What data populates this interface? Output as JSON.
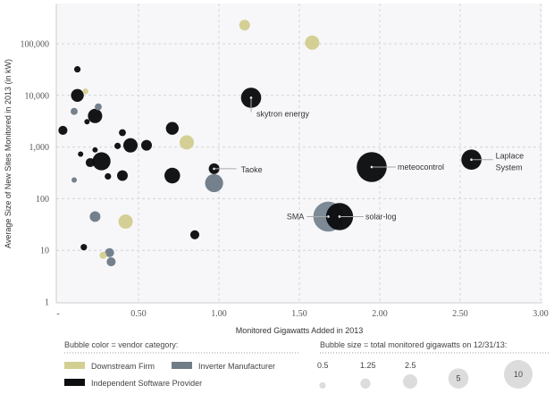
{
  "chart_data": {
    "type": "scatter",
    "subtype": "bubble",
    "title": "",
    "xlabel": "Monitored Gigawatts Added in 2013",
    "ylabel": "Average Size of New Sites Monitored in 2013 (in kW)",
    "xlim": [
      0,
      3.0
    ],
    "ylim": [
      1,
      1000000
    ],
    "yscale": "log",
    "xticks": [
      "-",
      "0.50",
      "1.00",
      "1.50",
      "2.00",
      "2.50",
      "3.00"
    ],
    "xtick_values": [
      0,
      0.5,
      1.0,
      1.5,
      2.0,
      2.5,
      3.0
    ],
    "yticks": [
      "1",
      "10",
      "100",
      "1,000",
      "10,000",
      "100,000"
    ],
    "ytick_values": [
      1,
      10,
      100,
      1000,
      10000,
      100000
    ],
    "grid": true,
    "colors": {
      "Downstream Firm": "#d3ce92",
      "Inverter Manufacturer": "#6f7d89",
      "Independent Software Provider": "#0b0d0f"
    },
    "color_legend_title": "Bubble color = vendor category:",
    "categories": [
      "Downstream Firm",
      "Inverter Manufacturer",
      "Independent Software Provider"
    ],
    "size_legend_title": "Bubble size = total monitored gigawatts on 12/31/13:",
    "size_legend": [
      "0.5",
      "1.25",
      "2.5",
      "5",
      "10"
    ],
    "size_legend_values": [
      0.5,
      1.25,
      2.5,
      5,
      10
    ],
    "points": [
      {
        "cat": "Downstream Firm",
        "x": 1.16,
        "y": 230000,
        "size": 1.4
      },
      {
        "cat": "Downstream Firm",
        "x": 1.58,
        "y": 105000,
        "size": 2.5
      },
      {
        "cat": "Downstream Firm",
        "x": 0.17,
        "y": 12000,
        "size": 0.4
      },
      {
        "cat": "Downstream Firm",
        "x": 0.8,
        "y": 1230,
        "size": 2.5
      },
      {
        "cat": "Downstream Firm",
        "x": 0.42,
        "y": 36,
        "size": 2.5
      },
      {
        "cat": "Downstream Firm",
        "x": 0.28,
        "y": 8,
        "size": 0.6
      },
      {
        "cat": "Inverter Manufacturer",
        "x": 0.1,
        "y": 4900,
        "size": 0.6
      },
      {
        "cat": "Inverter Manufacturer",
        "x": 0.25,
        "y": 6000,
        "size": 0.6
      },
      {
        "cat": "Inverter Manufacturer",
        "x": 0.1,
        "y": 230,
        "size": 0.35
      },
      {
        "cat": "Inverter Manufacturer",
        "x": 0.23,
        "y": 45,
        "size": 1.4
      },
      {
        "cat": "Inverter Manufacturer",
        "x": 0.97,
        "y": 200,
        "size": 4
      },
      {
        "cat": "Inverter Manufacturer",
        "x": 0.32,
        "y": 9,
        "size": 1
      },
      {
        "cat": "Inverter Manufacturer",
        "x": 0.33,
        "y": 6,
        "size": 1
      },
      {
        "cat": "Inverter Manufacturer",
        "x": 1.68,
        "y": 45,
        "size": 11,
        "label": "SMA"
      },
      {
        "cat": "Independent Software Provider",
        "x": 0.12,
        "y": 32000,
        "size": 0.5
      },
      {
        "cat": "Independent Software Provider",
        "x": 0.12,
        "y": 10000,
        "size": 2
      },
      {
        "cat": "Independent Software Provider",
        "x": 0.23,
        "y": 4000,
        "size": 2.5
      },
      {
        "cat": "Independent Software Provider",
        "x": 0.18,
        "y": 3100,
        "size": 0.35
      },
      {
        "cat": "Independent Software Provider",
        "x": 0.03,
        "y": 2100,
        "size": 1
      },
      {
        "cat": "Independent Software Provider",
        "x": 0.4,
        "y": 1900,
        "size": 0.6
      },
      {
        "cat": "Independent Software Provider",
        "x": 0.71,
        "y": 2300,
        "size": 2
      },
      {
        "cat": "Independent Software Provider",
        "x": 0.37,
        "y": 1050,
        "size": 0.5
      },
      {
        "cat": "Independent Software Provider",
        "x": 0.45,
        "y": 1080,
        "size": 2.5
      },
      {
        "cat": "Independent Software Provider",
        "x": 0.55,
        "y": 1080,
        "size": 1.4
      },
      {
        "cat": "Independent Software Provider",
        "x": 0.23,
        "y": 880,
        "size": 0.35
      },
      {
        "cat": "Independent Software Provider",
        "x": 0.14,
        "y": 730,
        "size": 0.35
      },
      {
        "cat": "Independent Software Provider",
        "x": 0.2,
        "y": 500,
        "size": 1
      },
      {
        "cat": "Independent Software Provider",
        "x": 0.27,
        "y": 530,
        "size": 4
      },
      {
        "cat": "Independent Software Provider",
        "x": 0.31,
        "y": 270,
        "size": 0.5
      },
      {
        "cat": "Independent Software Provider",
        "x": 0.4,
        "y": 280,
        "size": 1.4
      },
      {
        "cat": "Independent Software Provider",
        "x": 0.71,
        "y": 280,
        "size": 3
      },
      {
        "cat": "Independent Software Provider",
        "x": 0.85,
        "y": 20,
        "size": 1
      },
      {
        "cat": "Independent Software Provider",
        "x": 0.16,
        "y": 11.5,
        "size": 0.5
      },
      {
        "cat": "Independent Software Provider",
        "x": 0.97,
        "y": 380,
        "size": 1.4,
        "label": "Taoke"
      },
      {
        "cat": "Independent Software Provider",
        "x": 1.2,
        "y": 9000,
        "size": 5,
        "label": "skytron energy"
      },
      {
        "cat": "Independent Software Provider",
        "x": 1.95,
        "y": 410,
        "size": 11,
        "label": "meteocontrol"
      },
      {
        "cat": "Independent Software Provider",
        "x": 1.75,
        "y": 45,
        "size": 9,
        "label": "solar-log"
      },
      {
        "cat": "Independent Software Provider",
        "x": 2.57,
        "y": 570,
        "size": 5,
        "label": "Laplace System"
      }
    ]
  }
}
